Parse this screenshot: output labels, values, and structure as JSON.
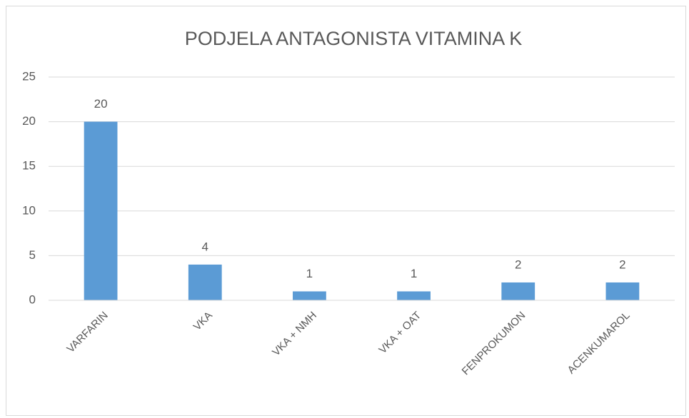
{
  "chart_data": {
    "type": "bar",
    "title": "PODJELA ANTAGONISTA VITAMINA K",
    "categories": [
      "VARFARIN",
      "VKA",
      "VKA + NMH",
      "VKA + OAT",
      "FENPROKUMON",
      "ACENKUMAROL"
    ],
    "values": [
      20,
      4,
      1,
      1,
      2,
      2
    ],
    "color": "#5b9bd5",
    "ylim": [
      0,
      25
    ],
    "yticks": [
      0,
      5,
      10,
      15,
      20,
      25
    ],
    "grid": true
  }
}
